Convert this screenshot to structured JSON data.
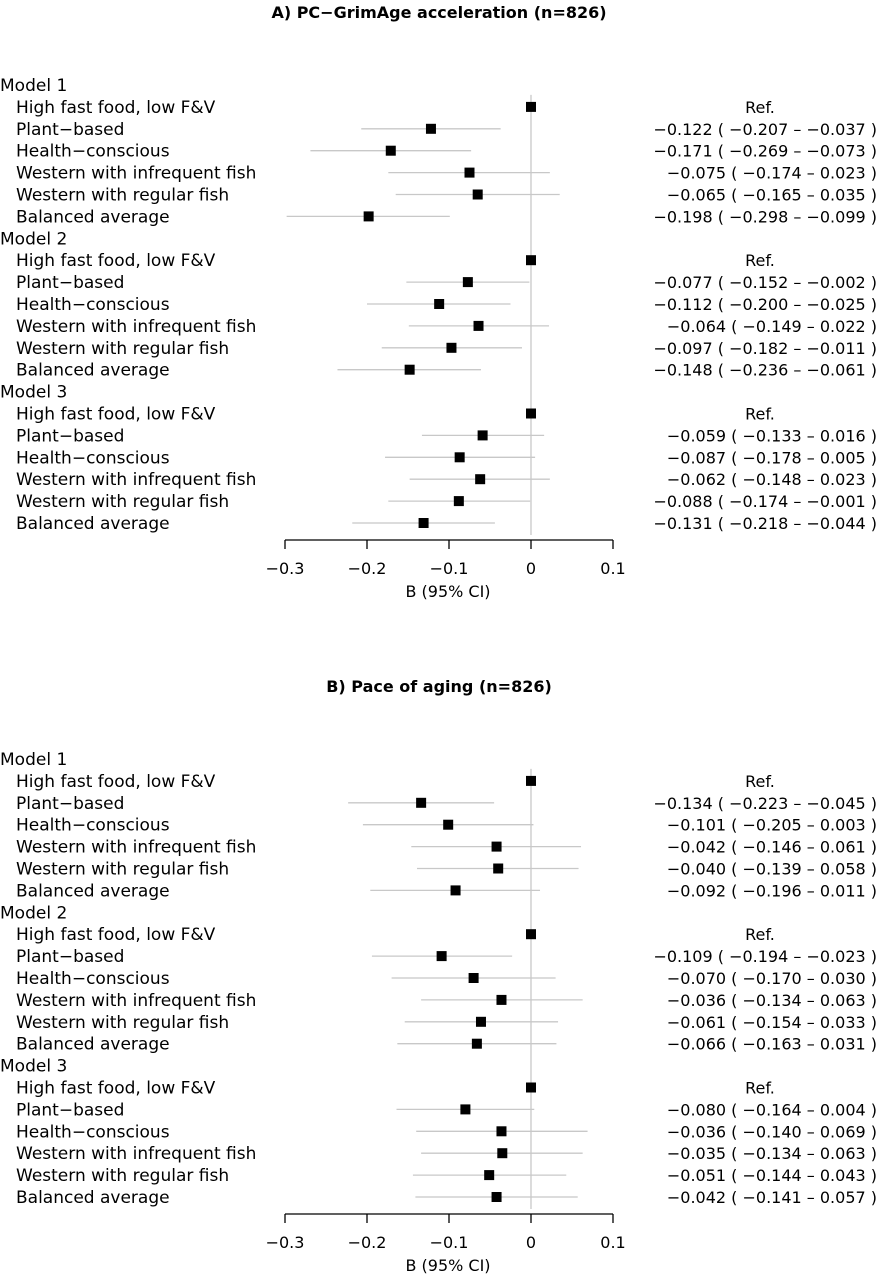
{
  "chart_data": [
    {
      "type": "forest",
      "title": "A) PC−GrimAge acceleration (n=826)",
      "xlabel": "B (95% CI)",
      "xlim": [
        -0.3,
        0.1
      ],
      "xticks": [
        "−0.3",
        "−0.2",
        "−0.1",
        "0",
        "0.1"
      ],
      "xtick_values": [
        -0.3,
        -0.2,
        -0.1,
        0,
        0.1
      ],
      "reference_line": 0,
      "models": [
        {
          "name": "Model 1",
          "rows": [
            {
              "label": "High fast food, low F&V",
              "b": 0,
              "lo": null,
              "hi": null,
              "text": "Ref."
            },
            {
              "label": "Plant−based",
              "b": -0.122,
              "lo": -0.207,
              "hi": -0.037,
              "text": "−0.122  ( −0.207 – −0.037 )"
            },
            {
              "label": "Health−conscious",
              "b": -0.171,
              "lo": -0.269,
              "hi": -0.073,
              "text": "−0.171  ( −0.269 – −0.073 )"
            },
            {
              "label": "Western with infrequent fish",
              "b": -0.075,
              "lo": -0.174,
              "hi": 0.023,
              "text": "−0.075  ( −0.174 –  0.023 )"
            },
            {
              "label": "Western with regular fish",
              "b": -0.065,
              "lo": -0.165,
              "hi": 0.035,
              "text": "−0.065  ( −0.165 –  0.035 )"
            },
            {
              "label": "Balanced average",
              "b": -0.198,
              "lo": -0.298,
              "hi": -0.099,
              "text": "−0.198  ( −0.298 – −0.099 )"
            }
          ]
        },
        {
          "name": "Model 2",
          "rows": [
            {
              "label": "High fast food, low F&V",
              "b": 0,
              "lo": null,
              "hi": null,
              "text": "Ref."
            },
            {
              "label": "Plant−based",
              "b": -0.077,
              "lo": -0.152,
              "hi": -0.002,
              "text": "−0.077  ( −0.152 – −0.002 )"
            },
            {
              "label": "Health−conscious",
              "b": -0.112,
              "lo": -0.2,
              "hi": -0.025,
              "text": "−0.112  ( −0.200 – −0.025 )"
            },
            {
              "label": "Western with infrequent fish",
              "b": -0.064,
              "lo": -0.149,
              "hi": 0.022,
              "text": "−0.064  ( −0.149 –  0.022 )"
            },
            {
              "label": "Western with regular fish",
              "b": -0.097,
              "lo": -0.182,
              "hi": -0.011,
              "text": "−0.097  ( −0.182 – −0.011 )"
            },
            {
              "label": "Balanced average",
              "b": -0.148,
              "lo": -0.236,
              "hi": -0.061,
              "text": "−0.148  ( −0.236 – −0.061 )"
            }
          ]
        },
        {
          "name": "Model 3",
          "rows": [
            {
              "label": "High fast food, low F&V",
              "b": 0,
              "lo": null,
              "hi": null,
              "text": "Ref."
            },
            {
              "label": "Plant−based",
              "b": -0.059,
              "lo": -0.133,
              "hi": 0.016,
              "text": "−0.059  ( −0.133 –  0.016 )"
            },
            {
              "label": "Health−conscious",
              "b": -0.087,
              "lo": -0.178,
              "hi": 0.005,
              "text": "−0.087  ( −0.178 –  0.005 )"
            },
            {
              "label": "Western with infrequent fish",
              "b": -0.062,
              "lo": -0.148,
              "hi": 0.023,
              "text": "−0.062  ( −0.148 –  0.023 )"
            },
            {
              "label": "Western with regular fish",
              "b": -0.088,
              "lo": -0.174,
              "hi": -0.001,
              "text": "−0.088  ( −0.174 – −0.001 )"
            },
            {
              "label": "Balanced average",
              "b": -0.131,
              "lo": -0.218,
              "hi": -0.044,
              "text": "−0.131  ( −0.218 – −0.044 )"
            }
          ]
        }
      ]
    },
    {
      "type": "forest",
      "title": "B) Pace of aging (n=826)",
      "xlabel": "B (95% CI)",
      "xlim": [
        -0.3,
        0.1
      ],
      "xticks": [
        "−0.3",
        "−0.2",
        "−0.1",
        "0",
        "0.1"
      ],
      "xtick_values": [
        -0.3,
        -0.2,
        -0.1,
        0,
        0.1
      ],
      "reference_line": 0,
      "models": [
        {
          "name": "Model 1",
          "rows": [
            {
              "label": "High fast food, low F&V",
              "b": 0,
              "lo": null,
              "hi": null,
              "text": "Ref."
            },
            {
              "label": "Plant−based",
              "b": -0.134,
              "lo": -0.223,
              "hi": -0.045,
              "text": "−0.134  ( −0.223 – −0.045 )"
            },
            {
              "label": "Health−conscious",
              "b": -0.101,
              "lo": -0.205,
              "hi": 0.003,
              "text": "−0.101  ( −0.205 –  0.003 )"
            },
            {
              "label": "Western with infrequent fish",
              "b": -0.042,
              "lo": -0.146,
              "hi": 0.061,
              "text": "−0.042  ( −0.146 –  0.061 )"
            },
            {
              "label": "Western with regular fish",
              "b": -0.04,
              "lo": -0.139,
              "hi": 0.058,
              "text": "−0.040  ( −0.139 –  0.058 )"
            },
            {
              "label": "Balanced average",
              "b": -0.092,
              "lo": -0.196,
              "hi": 0.011,
              "text": "−0.092  ( −0.196 –  0.011 )"
            }
          ]
        },
        {
          "name": "Model 2",
          "rows": [
            {
              "label": "High fast food, low F&V",
              "b": 0,
              "lo": null,
              "hi": null,
              "text": "Ref."
            },
            {
              "label": "Plant−based",
              "b": -0.109,
              "lo": -0.194,
              "hi": -0.023,
              "text": "−0.109  ( −0.194 – −0.023 )"
            },
            {
              "label": "Health−conscious",
              "b": -0.07,
              "lo": -0.17,
              "hi": 0.03,
              "text": "−0.070  ( −0.170 –  0.030 )"
            },
            {
              "label": "Western with infrequent fish",
              "b": -0.036,
              "lo": -0.134,
              "hi": 0.063,
              "text": "−0.036  ( −0.134 –  0.063 )"
            },
            {
              "label": "Western with regular fish",
              "b": -0.061,
              "lo": -0.154,
              "hi": 0.033,
              "text": "−0.061  ( −0.154 –  0.033 )"
            },
            {
              "label": "Balanced average",
              "b": -0.066,
              "lo": -0.163,
              "hi": 0.031,
              "text": "−0.066  ( −0.163 –  0.031 )"
            }
          ]
        },
        {
          "name": "Model 3",
          "rows": [
            {
              "label": "High fast food, low F&V",
              "b": 0,
              "lo": null,
              "hi": null,
              "text": "Ref."
            },
            {
              "label": "Plant−based",
              "b": -0.08,
              "lo": -0.164,
              "hi": 0.004,
              "text": "−0.080  ( −0.164 –  0.004 )"
            },
            {
              "label": "Health−conscious",
              "b": -0.036,
              "lo": -0.14,
              "hi": 0.069,
              "text": "−0.036  ( −0.140 –  0.069 )"
            },
            {
              "label": "Western with infrequent fish",
              "b": -0.035,
              "lo": -0.134,
              "hi": 0.063,
              "text": "−0.035  ( −0.134 –  0.063 )"
            },
            {
              "label": "Western with regular fish",
              "b": -0.051,
              "lo": -0.144,
              "hi": 0.043,
              "text": "−0.051  ( −0.144 –  0.043 )"
            },
            {
              "label": "Balanced average",
              "b": -0.042,
              "lo": -0.141,
              "hi": 0.057,
              "text": "−0.042  ( −0.141 –  0.057 )"
            }
          ]
        }
      ]
    }
  ],
  "colors": {
    "ci_line": "#c8c8c8",
    "reference_line": "#c8c8c8",
    "marker": "#000000",
    "axis": "#000000",
    "background": "#ffffff"
  }
}
